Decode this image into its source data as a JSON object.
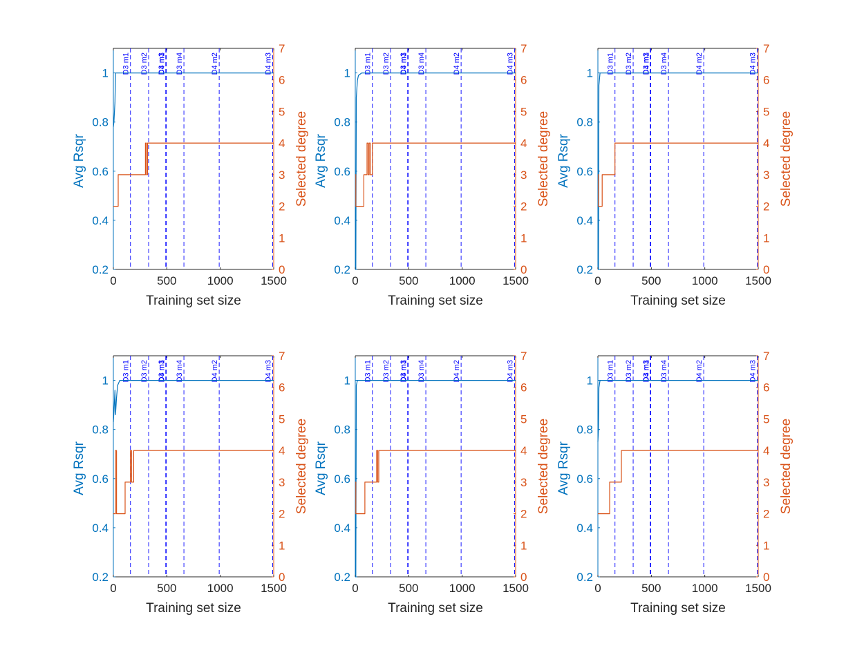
{
  "colors": {
    "left_axis": "#0072BD",
    "right_axis": "#D95319",
    "vline": "#0000FF",
    "axis_black": "#262626"
  },
  "shared": {
    "xlabel": "Training set size",
    "ylabel_left": "Avg Rsqr",
    "ylabel_right": "Selected degree",
    "xlim": [
      0,
      1500
    ],
    "ylim_left": [
      0.2,
      1.1
    ],
    "ylim_right": [
      0,
      7
    ],
    "xticks": [
      0,
      500,
      1000,
      1500
    ],
    "yticks_left": [
      0.2,
      0.4,
      0.6,
      0.8,
      1
    ],
    "yticks_right": [
      0,
      1,
      2,
      3,
      4,
      5,
      6,
      7
    ],
    "markers": [
      {
        "x": 160,
        "label": "D3 m1"
      },
      {
        "x": 330,
        "label": "D3 m2"
      },
      {
        "x": 490,
        "label": "D3 m3"
      },
      {
        "x": 495,
        "label": "D4 m1"
      },
      {
        "x": 660,
        "label": "D3 m4"
      },
      {
        "x": 990,
        "label": "D4 m2"
      },
      {
        "x": 1490,
        "label": "D4 m3"
      }
    ]
  },
  "chart_data": [
    {
      "type": "line",
      "series": [
        {
          "axis": "left",
          "x": [
            0,
            5,
            15,
            20,
            1500
          ],
          "y": [
            0.78,
            0.8,
            0.88,
            1.0,
            1.0
          ]
        },
        {
          "axis": "right",
          "x": [
            0,
            45,
            45,
            300,
            300,
            310,
            310,
            320,
            320,
            1500
          ],
          "y": [
            2,
            2,
            3,
            3,
            4,
            4,
            3,
            3,
            4,
            4
          ]
        }
      ]
    },
    {
      "type": "line",
      "series": [
        {
          "axis": "left",
          "x": [
            0,
            5,
            10,
            20,
            30,
            60,
            1500
          ],
          "y": [
            0.2,
            0.2,
            0.9,
            0.97,
            0.99,
            1.0,
            1.0
          ]
        },
        {
          "axis": "right",
          "x": [
            0,
            5,
            5,
            10,
            10,
            80,
            80,
            110,
            110,
            120,
            120,
            130,
            130,
            140,
            140,
            160,
            160,
            1500
          ],
          "y": [
            3,
            3,
            2,
            2,
            2,
            2,
            3,
            3,
            4,
            4,
            3,
            3,
            4,
            4,
            3,
            3,
            4,
            4
          ]
        }
      ]
    },
    {
      "type": "line",
      "series": [
        {
          "axis": "left",
          "x": [
            0,
            5,
            10,
            20,
            1500
          ],
          "y": [
            0.2,
            0.2,
            0.95,
            1.0,
            1.0
          ]
        },
        {
          "axis": "right",
          "x": [
            0,
            5,
            5,
            40,
            40,
            150,
            150,
            160,
            160,
            1500
          ],
          "y": [
            3,
            3,
            2,
            2,
            3,
            3,
            3,
            3,
            4,
            4
          ]
        }
      ]
    },
    {
      "type": "line",
      "series": [
        {
          "axis": "left",
          "x": [
            0,
            5,
            15,
            20,
            30,
            40,
            60,
            1500
          ],
          "y": [
            0.83,
            0.87,
            0.96,
            0.86,
            0.93,
            0.98,
            1.0,
            1.0
          ]
        },
        {
          "axis": "right",
          "x": [
            0,
            20,
            20,
            30,
            30,
            110,
            110,
            150,
            150,
            160,
            160,
            170,
            170,
            180,
            180,
            190,
            190,
            1500
          ],
          "y": [
            2,
            2,
            4,
            4,
            2,
            2,
            3,
            3,
            3,
            3,
            4,
            4,
            3,
            3,
            3,
            3,
            4,
            4
          ]
        }
      ]
    },
    {
      "type": "line",
      "series": [
        {
          "axis": "left",
          "x": [
            0,
            5,
            10,
            20,
            1500
          ],
          "y": [
            0.2,
            0.2,
            0.98,
            1.0,
            1.0
          ]
        },
        {
          "axis": "right",
          "x": [
            0,
            5,
            5,
            90,
            90,
            200,
            200,
            210,
            210,
            220,
            220,
            230,
            230,
            1500
          ],
          "y": [
            3,
            3,
            2,
            2,
            3,
            3,
            4,
            4,
            3,
            3,
            4,
            4,
            4,
            4
          ]
        }
      ]
    },
    {
      "type": "line",
      "series": [
        {
          "axis": "left",
          "x": [
            0,
            5,
            10,
            20,
            1500
          ],
          "y": [
            0.75,
            0.8,
            0.97,
            1.0,
            1.0
          ]
        },
        {
          "axis": "right",
          "x": [
            0,
            110,
            110,
            200,
            200,
            220,
            220,
            1500
          ],
          "y": [
            2,
            2,
            3,
            3,
            3,
            3,
            4,
            4
          ]
        }
      ]
    }
  ]
}
